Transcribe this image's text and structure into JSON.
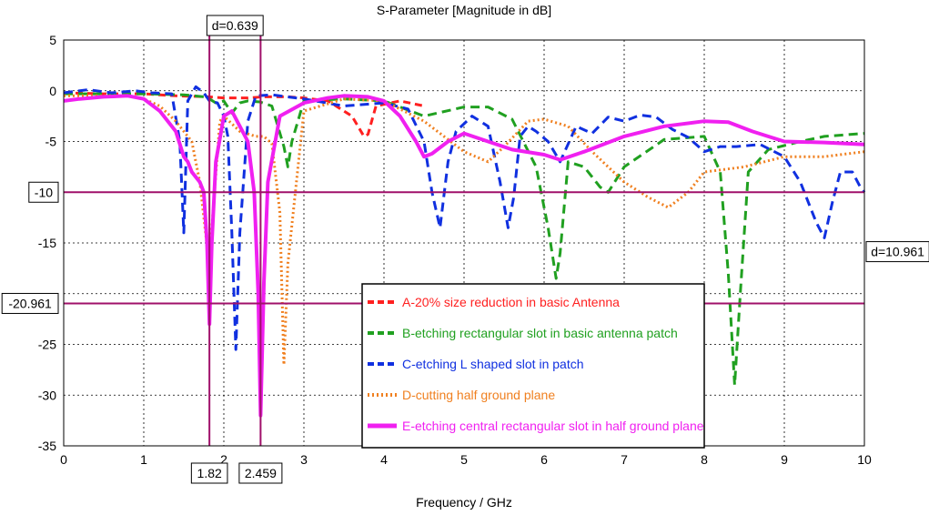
{
  "chart_data": {
    "type": "line",
    "title": "S-Parameter [Magnitude in dB]",
    "xlabel": "Frequency / GHz",
    "ylabel": "",
    "xlim": [
      0,
      10
    ],
    "ylim": [
      -35,
      5
    ],
    "xticks": [
      0,
      1,
      2,
      3,
      4,
      5,
      6,
      7,
      8,
      9,
      10
    ],
    "yticks": [
      5,
      0,
      -5,
      -10,
      -15,
      -20,
      -25,
      -30,
      -35
    ],
    "ytick_labels": [
      "5",
      "0",
      "-5",
      "-10",
      "-15",
      "",
      "-25",
      "-30",
      "-35"
    ],
    "grid": true,
    "legend_position": "bottom-center",
    "markers": {
      "vertical": [
        {
          "x": 1.82,
          "label": "1.82"
        },
        {
          "x": 2.459,
          "label": "2.459"
        }
      ],
      "horizontal": [
        {
          "y": -10,
          "label": "-10"
        },
        {
          "y": -20.961,
          "label": "-20.961"
        }
      ],
      "delta_x_label": "d=0.639",
      "delta_y_label": "d=10.961",
      "color": "#a0106a"
    },
    "series": [
      {
        "name": "A-20% size reduction in basic Antenna",
        "color": "#ff2020",
        "dash": "8,5",
        "x": [
          0,
          0.5,
          1.0,
          1.4,
          1.8,
          2.0,
          2.3,
          2.5,
          2.8,
          3.0,
          3.3,
          3.6,
          3.75,
          3.8,
          3.9,
          4.2,
          4.5
        ],
        "y": [
          -0.2,
          -0.3,
          -0.3,
          -0.5,
          -0.6,
          -0.7,
          -0.7,
          -0.6,
          -0.6,
          -0.7,
          -1.0,
          -2.5,
          -4.5,
          -4.3,
          -1.5,
          -1.0,
          -1.5
        ]
      },
      {
        "name": "B-etching rectangular slot in basic antenna patch",
        "color": "#20a020",
        "dash": "10,6",
        "x": [
          0,
          0.5,
          1.0,
          1.5,
          1.75,
          1.82,
          1.9,
          2.0,
          2.1,
          2.2,
          2.3,
          2.45,
          2.6,
          2.75,
          2.8,
          2.85,
          3.0,
          3.5,
          4.0,
          4.5,
          5.0,
          5.3,
          5.6,
          5.9,
          6.05,
          6.15,
          6.2,
          6.3,
          6.5,
          6.7,
          6.8,
          7.0,
          7.5,
          8.0,
          8.2,
          8.3,
          8.38,
          8.45,
          8.55,
          8.8,
          9.2,
          9.5,
          10.0
        ],
        "y": [
          -0.3,
          -0.3,
          -0.3,
          -0.4,
          -0.6,
          -0.8,
          -1.2,
          -1.0,
          -2.2,
          -1.2,
          -1.0,
          -1.1,
          -1.5,
          -5.5,
          -7.5,
          -5.0,
          -1.0,
          -0.8,
          -1.0,
          -2.5,
          -1.6,
          -1.6,
          -2.8,
          -7.5,
          -13.5,
          -18.5,
          -16.0,
          -7.0,
          -7.5,
          -9.5,
          -10.0,
          -7.5,
          -4.8,
          -4.5,
          -8.0,
          -18.0,
          -29.0,
          -20.0,
          -8.0,
          -5.8,
          -5.0,
          -4.5,
          -4.2
        ]
      },
      {
        "name": "C-etching L shaped slot in patch",
        "color": "#1030e0",
        "dash": "10,6",
        "x": [
          0,
          0.3,
          0.6,
          0.9,
          1.1,
          1.35,
          1.45,
          1.5,
          1.55,
          1.65,
          1.75,
          1.82,
          1.92,
          2.0,
          2.05,
          2.1,
          2.15,
          2.2,
          2.3,
          2.4,
          2.6,
          3.0,
          3.5,
          4.0,
          4.3,
          4.5,
          4.6,
          4.7,
          4.8,
          4.9,
          5.1,
          5.3,
          5.45,
          5.55,
          5.62,
          5.7,
          5.8,
          5.9,
          6.05,
          6.2,
          6.4,
          6.6,
          6.8,
          7.0,
          7.2,
          7.4,
          7.6,
          7.8,
          8.0,
          8.2,
          8.4,
          8.7,
          9.0,
          9.2,
          9.4,
          9.5,
          9.6,
          9.7,
          9.85,
          9.95,
          10.0
        ],
        "y": [
          -0.2,
          0.1,
          -0.2,
          0.0,
          -0.2,
          -0.3,
          -5.0,
          -14.0,
          -1.0,
          0.4,
          -0.2,
          -1.0,
          -1.2,
          -2.5,
          -4.5,
          -14.0,
          -25.5,
          -14.0,
          -3.0,
          -0.5,
          -0.4,
          -0.8,
          -1.5,
          -1.2,
          -1.8,
          -5.0,
          -10.0,
          -13.5,
          -7.0,
          -4.0,
          -2.5,
          -3.5,
          -9.0,
          -13.5,
          -10.5,
          -4.5,
          -3.5,
          -4.0,
          -5.0,
          -7.0,
          -3.5,
          -4.2,
          -2.6,
          -3.0,
          -2.4,
          -2.6,
          -3.8,
          -4.6,
          -6.0,
          -5.5,
          -5.5,
          -5.3,
          -6.5,
          -9.0,
          -13.0,
          -14.5,
          -11.0,
          -8.0,
          -8.0,
          -9.5,
          -10.0
        ]
      },
      {
        "name": "D-cutting half ground plane",
        "color": "#f08020",
        "dash": "2,3",
        "x": [
          0,
          0.5,
          0.8,
          1.0,
          1.2,
          1.4,
          1.6,
          1.7,
          1.8,
          1.85,
          1.95,
          2.0,
          2.2,
          2.4,
          2.5,
          2.6,
          2.7,
          2.75,
          2.8,
          3.0,
          3.5,
          4.0,
          4.5,
          5.0,
          5.3,
          5.5,
          5.8,
          6.0,
          6.3,
          6.6,
          7.0,
          7.3,
          7.55,
          7.8,
          8.0,
          8.5,
          9.0,
          9.5,
          10.0
        ],
        "y": [
          -0.5,
          -0.5,
          -0.5,
          -0.8,
          -1.5,
          -3.0,
          -5.0,
          -9.0,
          -16.0,
          -13.5,
          -3.0,
          -2.5,
          -4.0,
          -4.5,
          -4.5,
          -5.2,
          -12.0,
          -27.0,
          -17.0,
          -2.0,
          -0.8,
          -1.0,
          -3.0,
          -6.0,
          -7.0,
          -5.5,
          -3.0,
          -2.8,
          -3.5,
          -6.0,
          -9.0,
          -10.5,
          -11.5,
          -10.0,
          -8.0,
          -7.5,
          -6.5,
          -6.5,
          -6.0
        ]
      },
      {
        "name": "E-etching central rectangular slot in half ground plane",
        "color": "#f020f0",
        "dash": "",
        "x": [
          0,
          0.2,
          0.5,
          0.8,
          1.0,
          1.2,
          1.4,
          1.5,
          1.55,
          1.6,
          1.7,
          1.75,
          1.79,
          1.82,
          1.85,
          1.9,
          2.0,
          2.1,
          2.2,
          2.3,
          2.38,
          2.43,
          2.459,
          2.5,
          2.55,
          2.7,
          3.0,
          3.3,
          3.5,
          3.8,
          4.0,
          4.2,
          4.4,
          4.5,
          4.6,
          4.8,
          5.0,
          5.3,
          5.6,
          6.0,
          6.2,
          6.5,
          7.0,
          7.5,
          8.0,
          8.3,
          8.6,
          9.0,
          9.5,
          10.0
        ],
        "y": [
          -1.0,
          -0.8,
          -0.6,
          -0.5,
          -0.8,
          -2.0,
          -4.0,
          -6.5,
          -7.0,
          -8.0,
          -9.0,
          -10.0,
          -15.0,
          -23.0,
          -15.0,
          -7.0,
          -2.5,
          -2.0,
          -3.5,
          -5.0,
          -10.0,
          -20.0,
          -32.0,
          -19.0,
          -9.0,
          -2.5,
          -1.2,
          -0.7,
          -0.5,
          -0.6,
          -1.0,
          -2.5,
          -5.0,
          -6.5,
          -6.2,
          -5.0,
          -4.2,
          -5.0,
          -5.8,
          -6.3,
          -6.8,
          -6.0,
          -4.5,
          -3.5,
          -3.0,
          -3.1,
          -4.0,
          -5.0,
          -5.1,
          -5.3
        ]
      }
    ]
  }
}
